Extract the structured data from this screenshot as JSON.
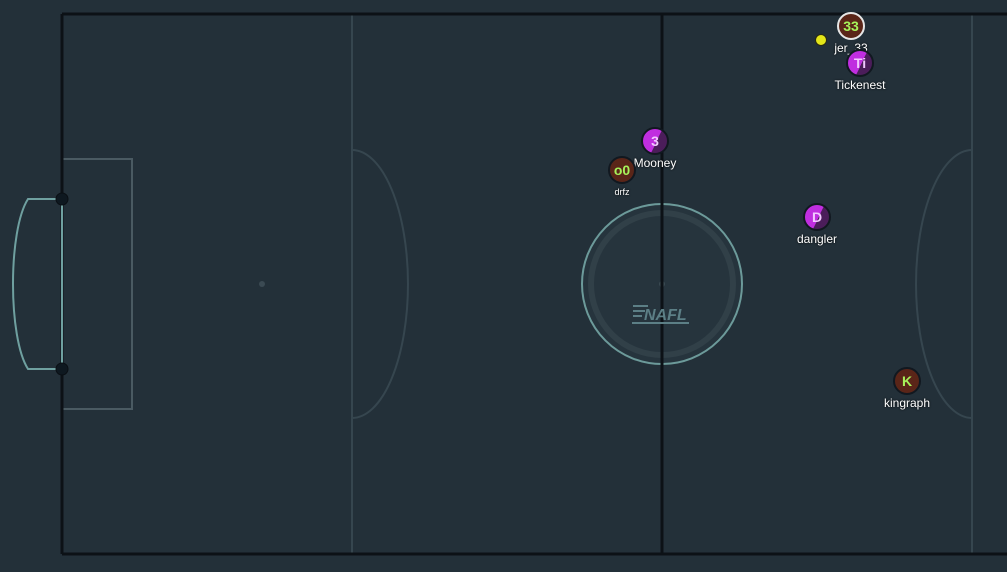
{
  "logo": {
    "text": "NAFL"
  },
  "colors": {
    "pitch": "#233039",
    "field_line": "#36464f",
    "boundary": "#0c1116",
    "goal": "#6fa0a0",
    "ball": "#e4e619",
    "team_red": "#5a2518",
    "team_purple": "#c02ee0"
  },
  "players": [
    {
      "id": "p33",
      "initials": "33",
      "name": "jer_33",
      "team": "red",
      "selected": true
    },
    {
      "id": "pti",
      "initials": "Ti",
      "name": "Tickenest",
      "team": "purple"
    },
    {
      "id": "p3",
      "initials": "3",
      "name": "Mooney",
      "team": "purple"
    },
    {
      "id": "po0",
      "initials": "o0",
      "name": "drfz",
      "team": "red"
    },
    {
      "id": "pd",
      "initials": "D",
      "name": "dangler",
      "team": "purple"
    },
    {
      "id": "pk",
      "initials": "K",
      "name": "kingraph",
      "team": "red"
    }
  ]
}
